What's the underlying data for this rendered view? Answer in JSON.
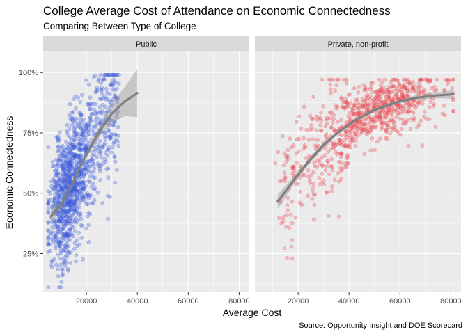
{
  "chart_data": {
    "type": "scatter",
    "title": "College Average Cost of Attendance on Economic Connectedness",
    "subtitle": "Comparing Between Type of College",
    "xlabel": "Average Cost",
    "ylabel": "Economic Connectedness",
    "caption": "Source: Opportunity Insight and DOE Scorecard",
    "xlim": [
      3000,
      84000
    ],
    "ylim": [
      0.09,
      1.09
    ],
    "x_ticks": [
      20000,
      40000,
      60000,
      80000
    ],
    "x_tick_labels": [
      "20000",
      "40000",
      "60000",
      "80000"
    ],
    "y_ticks": [
      0.25,
      0.5,
      0.75,
      1.0
    ],
    "y_tick_labels": [
      "25%",
      "50%",
      "75%",
      "100%"
    ],
    "grid": true,
    "legend": "none",
    "facets": [
      {
        "label": "Public",
        "color": "#3b5bdb",
        "trend": [
          {
            "x": 6000,
            "y": 0.405
          },
          {
            "x": 10000,
            "y": 0.45
          },
          {
            "x": 14000,
            "y": 0.53
          },
          {
            "x": 18000,
            "y": 0.62
          },
          {
            "x": 22000,
            "y": 0.7
          },
          {
            "x": 26000,
            "y": 0.77
          },
          {
            "x": 30000,
            "y": 0.83
          },
          {
            "x": 35000,
            "y": 0.88
          },
          {
            "x": 40000,
            "y": 0.915
          }
        ],
        "band_halfwidth": [
          0.035,
          0.012,
          0.008,
          0.01,
          0.015,
          0.025,
          0.04,
          0.06,
          0.1
        ]
      },
      {
        "label": "Private, non-profit",
        "color": "#e8474e",
        "trend": [
          {
            "x": 12000,
            "y": 0.465
          },
          {
            "x": 18000,
            "y": 0.55
          },
          {
            "x": 24000,
            "y": 0.63
          },
          {
            "x": 30000,
            "y": 0.7
          },
          {
            "x": 36000,
            "y": 0.755
          },
          {
            "x": 42000,
            "y": 0.8
          },
          {
            "x": 50000,
            "y": 0.845
          },
          {
            "x": 58000,
            "y": 0.875
          },
          {
            "x": 66000,
            "y": 0.895
          },
          {
            "x": 74000,
            "y": 0.905
          },
          {
            "x": 81000,
            "y": 0.91
          }
        ],
        "band_halfwidth": [
          0.03,
          0.018,
          0.012,
          0.01,
          0.008,
          0.007,
          0.007,
          0.008,
          0.009,
          0.012,
          0.018
        ]
      }
    ]
  }
}
